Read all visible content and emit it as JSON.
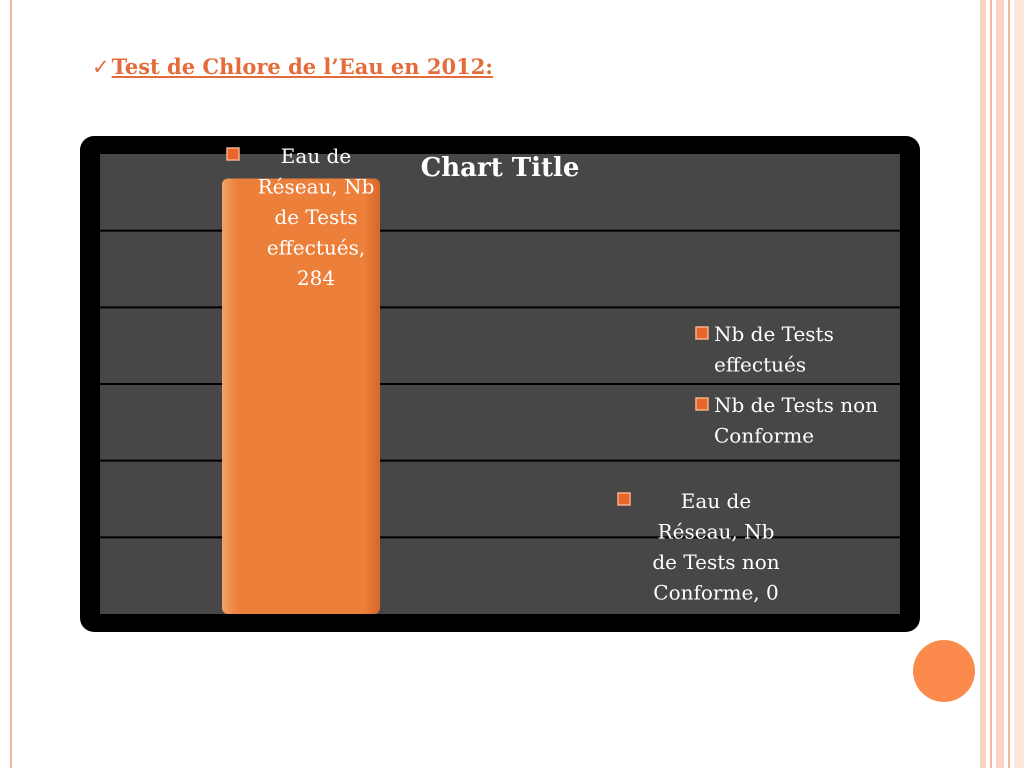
{
  "slide": {
    "check_glyph": "✓",
    "heading": "Test de Chlore de l’Eau en 2012:"
  },
  "colors": {
    "heading": "#e46c3a",
    "bar_orange": "#ec7f3a",
    "plot_bg": "#474747",
    "frame_bg": "#000000",
    "gridline": "#000000",
    "text": "#ffffff"
  },
  "chart_data": {
    "type": "bar",
    "title": "Chart Title",
    "categories": [
      "Eau de Réseau"
    ],
    "series": [
      {
        "name": "Nb de Tests effectués",
        "values": [
          284
        ],
        "label_lines": [
          "Eau de",
          "Réseau, Nb",
          "de Tests",
          "effectués,",
          "284"
        ]
      },
      {
        "name": "Nb de Tests non Conforme",
        "values": [
          0
        ],
        "label_lines": [
          "Eau de",
          "Réseau, Nb",
          "de Tests non",
          "Conforme, 0"
        ]
      }
    ],
    "legend": {
      "placement": "right",
      "entries": [
        {
          "lines": [
            "Nb de Tests",
            "effectués"
          ]
        },
        {
          "lines": [
            "Nb de Tests non",
            "Conforme"
          ]
        }
      ]
    },
    "ylim": [
      0,
      300
    ],
    "grid": true,
    "xlabel": "",
    "ylabel": ""
  }
}
